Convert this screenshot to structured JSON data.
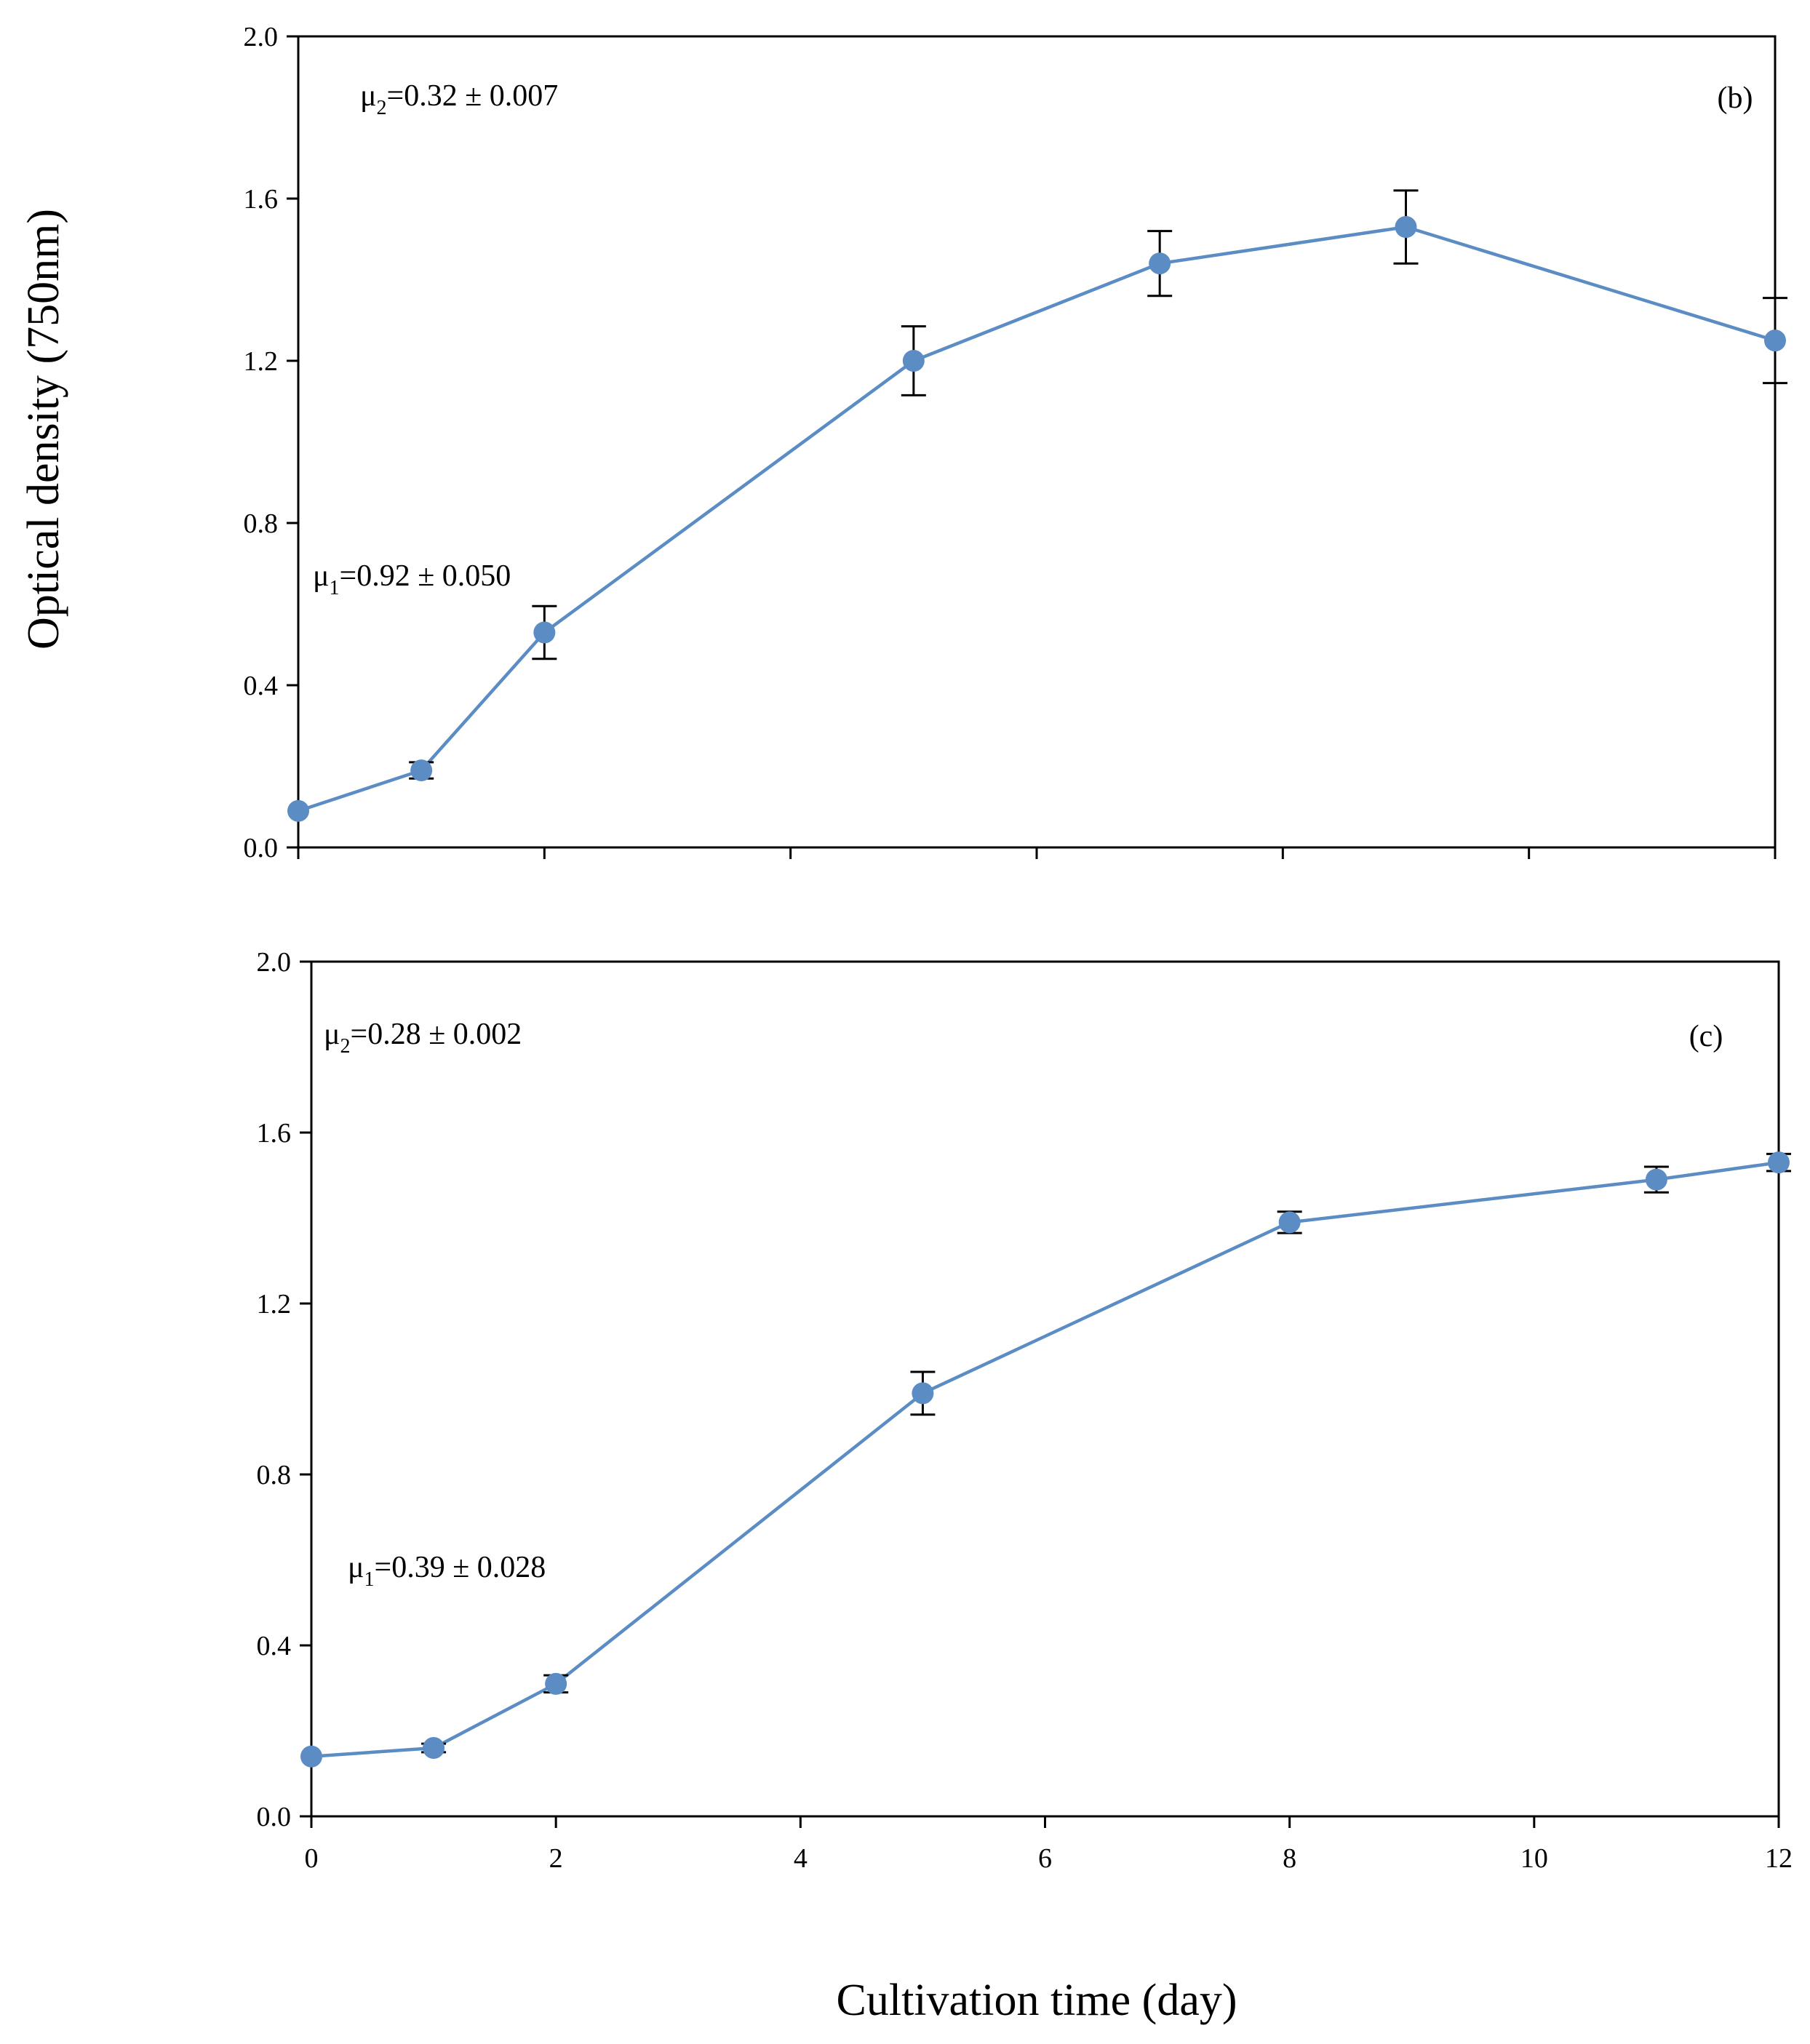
{
  "figure": {
    "ylabel": "Optical density (750nm)",
    "xlabel": "Cultivation time (day)"
  },
  "chart_data": [
    {
      "type": "line",
      "panel_label": "(b)",
      "xlim": [
        0,
        12
      ],
      "ylim": [
        0.0,
        2.0
      ],
      "x_ticks": [
        0,
        2,
        4,
        6,
        8,
        10,
        12
      ],
      "x_tick_labels_visible": false,
      "y_tick_labels": [
        "0.0",
        "0.4",
        "0.8",
        "1.2",
        "1.6",
        "2.0"
      ],
      "y_ticks": [
        0.0,
        0.4,
        0.8,
        1.2,
        1.6,
        2.0
      ],
      "color": "#5b8cc4",
      "series": [
        {
          "name": "OD750",
          "x": [
            0,
            1,
            2,
            5,
            7,
            9,
            12
          ],
          "y": [
            0.09,
            0.19,
            0.53,
            1.2,
            1.44,
            1.53,
            1.25
          ],
          "err": [
            0.0,
            0.02,
            0.065,
            0.085,
            0.08,
            0.09,
            0.105
          ]
        }
      ],
      "annotations": {
        "mu2": {
          "symbol": "μ",
          "sub": "2",
          "text": "=0.32 ± 0.007"
        },
        "mu1": {
          "symbol": "μ",
          "sub": "1",
          "text": "=0.92 ± 0.050"
        }
      }
    },
    {
      "type": "line",
      "panel_label": "(c)",
      "xlim": [
        0,
        12
      ],
      "ylim": [
        0.0,
        2.0
      ],
      "x_ticks": [
        0,
        2,
        4,
        6,
        8,
        10,
        12
      ],
      "x_tick_labels": [
        "0",
        "2",
        "4",
        "6",
        "8",
        "10",
        "12"
      ],
      "x_tick_labels_visible": true,
      "y_tick_labels": [
        "0.0",
        "0.4",
        "0.8",
        "1.2",
        "1.6",
        "2.0"
      ],
      "y_ticks": [
        0.0,
        0.4,
        0.8,
        1.2,
        1.6,
        2.0
      ],
      "color": "#5b8cc4",
      "series": [
        {
          "name": "OD750",
          "x": [
            0,
            1,
            2,
            5,
            8,
            11,
            12
          ],
          "y": [
            0.14,
            0.16,
            0.31,
            0.99,
            1.39,
            1.49,
            1.53
          ],
          "err": [
            0.0,
            0.01,
            0.02,
            0.05,
            0.025,
            0.03,
            0.02
          ]
        }
      ],
      "annotations": {
        "mu2": {
          "symbol": "μ",
          "sub": "2",
          "text": "=0.28 ± 0.002"
        },
        "mu1": {
          "symbol": "μ",
          "sub": "1",
          "text": "=0.39 ± 0.028"
        }
      }
    }
  ]
}
